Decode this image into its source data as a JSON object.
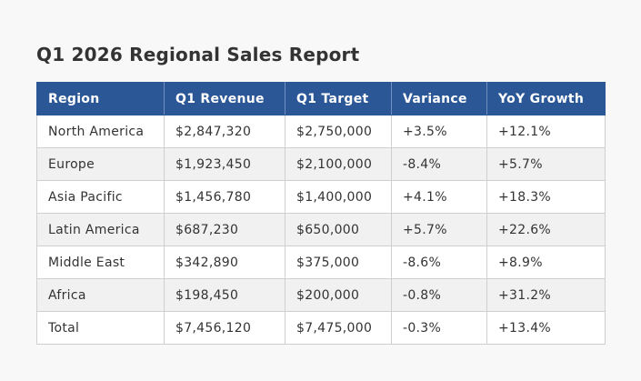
{
  "report": {
    "title": "Q1 2026 Regional Sales Report",
    "columns": [
      "Region",
      "Q1 Revenue",
      "Q1 Target",
      "Variance",
      "YoY Growth"
    ],
    "rows": [
      [
        "North America",
        "$2,847,320",
        "$2,750,000",
        "+3.5%",
        "+12.1%"
      ],
      [
        "Europe",
        "$1,923,450",
        "$2,100,000",
        "-8.4%",
        "+5.7%"
      ],
      [
        "Asia Pacific",
        "$1,456,780",
        "$1,400,000",
        "+4.1%",
        "+18.3%"
      ],
      [
        "Latin America",
        "$687,230",
        "$650,000",
        "+5.7%",
        "+22.6%"
      ],
      [
        "Middle East",
        "$342,890",
        "$375,000",
        "-8.6%",
        "+8.9%"
      ],
      [
        "Africa",
        "$198,450",
        "$200,000",
        "-0.8%",
        "+31.2%"
      ],
      [
        "Total",
        "$7,456,120",
        "$7,475,000",
        "-0.3%",
        "+13.4%"
      ]
    ]
  },
  "colors": {
    "header_background": "#2b5797",
    "header_text": "#ffffff",
    "row_alt_background": "#f1f1f1",
    "page_background": "#f8f8f8",
    "text": "#333333"
  }
}
